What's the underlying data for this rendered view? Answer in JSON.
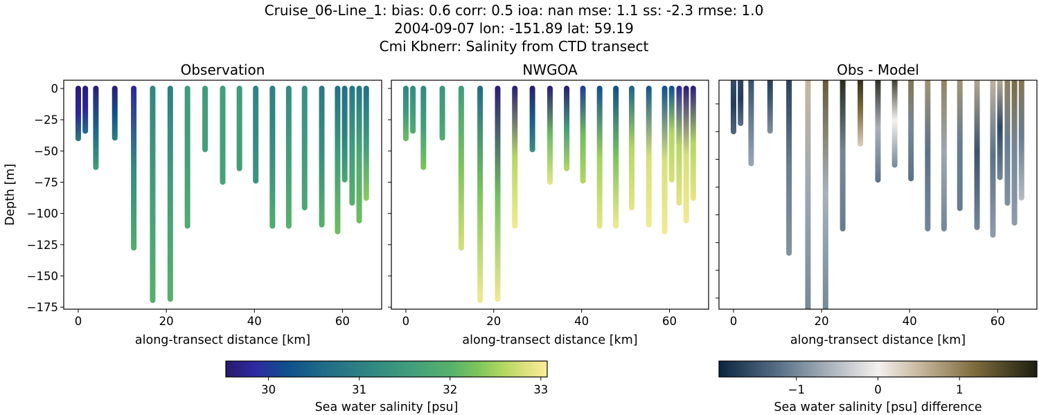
{
  "title_lines": [
    "Cruise_06-Line_1: bias: 0.6  corr: 0.5  ioa: nan  mse: 1.1  ss: -2.3  rmse: 1.0",
    "2004-09-07 lon: -151.89 lat: 59.19",
    "Cmi Kbnerr: Salinity from CTD transect"
  ],
  "chart_data": [
    {
      "type": "scatter",
      "title": "Observation",
      "xlabel": "along-transect distance [km]",
      "ylabel": "Depth [m]",
      "xlim": [
        -3.3,
        68.9
      ],
      "ylim": [
        -176.6,
        6.6
      ],
      "xticks": [
        0,
        20,
        40,
        60
      ],
      "yticks": [
        0,
        -25,
        -50,
        -75,
        -100,
        -125,
        -150,
        -175
      ],
      "ytick_labels": [
        "0",
        "−25",
        "−50",
        "−75",
        "−100",
        "−125",
        "−150",
        "−175"
      ],
      "variable": "obs"
    },
    {
      "type": "scatter",
      "title": "NWGOA",
      "xlabel": "along-transect distance [km]",
      "xlim": [
        -3.3,
        68.9
      ],
      "ylim": [
        -176.6,
        6.6
      ],
      "xticks": [
        0,
        20,
        40,
        60
      ],
      "yticks": [
        0,
        -25,
        -50,
        -75,
        -100,
        -125,
        -150,
        -175
      ],
      "variable": "model"
    },
    {
      "type": "scatter",
      "title": "Obs - Model",
      "xlabel": "along-transect distance [km]",
      "xlim": [
        -3.3,
        68.9
      ],
      "ylim": [
        -168,
        -3
      ],
      "xticks": [
        0,
        20,
        40,
        60
      ],
      "yticks": [
        -20,
        -40,
        -60,
        -80,
        -100,
        -120,
        -140,
        -160
      ],
      "variable": "diff"
    }
  ],
  "casts": {
    "distance_km": [
      0,
      1.6,
      4.0,
      8.3,
      12.6,
      16.9,
      20.9,
      24.8,
      28.8,
      32.8,
      36.6,
      40.3,
      44.1,
      47.8,
      51.4,
      55.3,
      58.9,
      60.5,
      62.2,
      63.8,
      65.4
    ],
    "max_depth_m": [
      40,
      34,
      63,
      39.5,
      127.5,
      169.5,
      168.5,
      110,
      48.8,
      74.8,
      64,
      73.9,
      110,
      110,
      95.3,
      109,
      114.5,
      73,
      91.5,
      105.8,
      87.7
    ],
    "obs_salinity_top_mid_bottom": [
      [
        29.6,
        29.8,
        30.9
      ],
      [
        29.6,
        29.8,
        30.7
      ],
      [
        29.6,
        30.5,
        31.6
      ],
      [
        29.6,
        30.2,
        31.0
      ],
      [
        29.8,
        31.2,
        31.9
      ],
      [
        31.1,
        31.6,
        32.0
      ],
      [
        31.0,
        31.6,
        32.0
      ],
      [
        31.5,
        31.6,
        31.9
      ],
      [
        31.5,
        31.6,
        31.6
      ],
      [
        31.6,
        31.6,
        31.7
      ],
      [
        31.5,
        31.6,
        31.6
      ],
      [
        31.1,
        31.2,
        31.4
      ],
      [
        31.0,
        31.3,
        31.9
      ],
      [
        31.2,
        31.6,
        32.0
      ],
      [
        31.3,
        31.5,
        31.8
      ],
      [
        30.9,
        31.3,
        32.0
      ],
      [
        30.7,
        31.6,
        32.2
      ],
      [
        30.7,
        31.0,
        31.8
      ],
      [
        30.8,
        31.5,
        32.0
      ],
      [
        30.8,
        31.8,
        32.2
      ],
      [
        30.7,
        31.5,
        32.4
      ]
    ],
    "model_salinity_top_mid_bottom": [
      [
        31.1,
        31.5,
        32.2
      ],
      [
        31.2,
        31.5,
        31.9
      ],
      [
        31.2,
        31.6,
        32.3
      ],
      [
        31.4,
        31.6,
        31.9
      ],
      [
        31.5,
        32.3,
        32.8
      ],
      [
        30.6,
        32.3,
        33.0
      ],
      [
        29.6,
        32.2,
        33.0
      ],
      [
        29.6,
        32.6,
        33.0
      ],
      [
        29.6,
        30.4,
        31.3
      ],
      [
        29.6,
        32.2,
        32.9
      ],
      [
        29.6,
        31.6,
        32.6
      ],
      [
        30.0,
        32.2,
        32.6
      ],
      [
        30.2,
        32.5,
        32.9
      ],
      [
        30.2,
        32.3,
        33.0
      ],
      [
        30.5,
        32.6,
        32.9
      ],
      [
        30.3,
        32.8,
        33.0
      ],
      [
        30.2,
        32.8,
        33.0
      ],
      [
        30.2,
        32.6,
        32.8
      ],
      [
        29.8,
        32.6,
        32.9
      ],
      [
        29.6,
        32.8,
        33.0
      ],
      [
        29.6,
        32.6,
        32.9
      ]
    ]
  },
  "colorbars": [
    {
      "label": "Sea water salinity [psu]",
      "range": [
        29.53,
        33.07
      ],
      "ticks": [
        30,
        31,
        32,
        33
      ],
      "tick_labels": [
        "30",
        "31",
        "32",
        "33"
      ],
      "colormap": [
        [
          29.53,
          "#29186b"
        ],
        [
          29.85,
          "#2d2aa0"
        ],
        [
          30.2,
          "#0f4f8c"
        ],
        [
          30.6,
          "#1f6b88"
        ],
        [
          31.0,
          "#2d8084"
        ],
        [
          31.5,
          "#3e9b7e"
        ],
        [
          32.0,
          "#56b16c"
        ],
        [
          32.3,
          "#7cc55a"
        ],
        [
          32.6,
          "#b4d862"
        ],
        [
          32.85,
          "#dfe280"
        ],
        [
          33.07,
          "#fbee9a"
        ]
      ]
    },
    {
      "label": "Sea water salinity [psu] difference",
      "range": [
        -1.95,
        1.95
      ],
      "ticks": [
        -1,
        0,
        1
      ],
      "tick_labels": [
        "−1",
        "0",
        "1"
      ],
      "colormap": [
        [
          -1.95,
          "#0b2440"
        ],
        [
          -1.2,
          "#5a7288"
        ],
        [
          -0.5,
          "#b6bcc3"
        ],
        [
          0,
          "#f3f0ee"
        ],
        [
          0.5,
          "#c8b9a0"
        ],
        [
          1.2,
          "#7c6a3c"
        ],
        [
          1.95,
          "#1c1e10"
        ]
      ]
    }
  ]
}
